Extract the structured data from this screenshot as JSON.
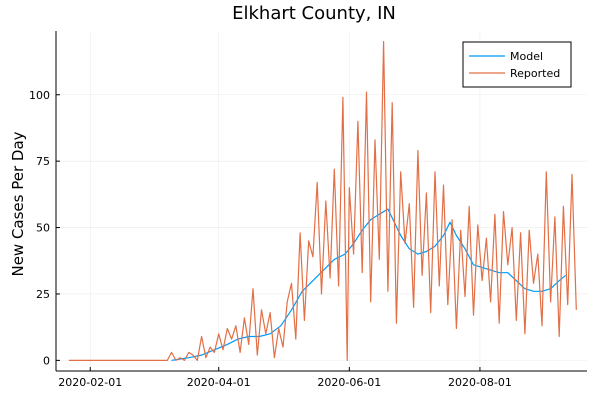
{
  "chart_data": {
    "type": "line",
    "title": "Elkhart County, IN",
    "xlabel": "",
    "ylabel": "New Cases Per Day",
    "x_axis_type": "date",
    "xlim": [
      "2020-01-16",
      "2020-09-20"
    ],
    "ylim": [
      -4,
      124
    ],
    "x_ticks": [
      "2020-02-01",
      "2020-04-01",
      "2020-06-01",
      "2020-08-01"
    ],
    "y_ticks": [
      0,
      25,
      50,
      75,
      100
    ],
    "grid": true,
    "legend_position": "top-right",
    "series": [
      {
        "name": "Model",
        "color": "#009AFA",
        "x": [
          "2020-03-10",
          "2020-03-18",
          "2020-03-24",
          "2020-03-30",
          "2020-04-05",
          "2020-04-10",
          "2020-04-15",
          "2020-04-20",
          "2020-04-25",
          "2020-04-30",
          "2020-05-05",
          "2020-05-10",
          "2020-05-15",
          "2020-05-20",
          "2020-05-25",
          "2020-05-30",
          "2020-06-03",
          "2020-06-07",
          "2020-06-11",
          "2020-06-15",
          "2020-06-19",
          "2020-06-22",
          "2020-06-25",
          "2020-06-29",
          "2020-07-03",
          "2020-07-07",
          "2020-07-11",
          "2020-07-15",
          "2020-07-18",
          "2020-07-21",
          "2020-07-25",
          "2020-07-29",
          "2020-08-02",
          "2020-08-06",
          "2020-08-10",
          "2020-08-14",
          "2020-08-18",
          "2020-08-22",
          "2020-08-26",
          "2020-08-30",
          "2020-09-03",
          "2020-09-07",
          "2020-09-10"
        ],
        "values": [
          0,
          1,
          2,
          4,
          6,
          8,
          9,
          9,
          10,
          13,
          19,
          26,
          30,
          34,
          38,
          40,
          44,
          49,
          53,
          55,
          57,
          52,
          47,
          42,
          40,
          41,
          43,
          47,
          52,
          47,
          42,
          36,
          35,
          34,
          33,
          33,
          30,
          27,
          26,
          26,
          27,
          30,
          32
        ]
      },
      {
        "name": "Reported",
        "color": "#E26F46",
        "x": [
          "2020-01-22",
          "2020-03-08",
          "2020-03-10",
          "2020-03-12",
          "2020-03-14",
          "2020-03-16",
          "2020-03-18",
          "2020-03-20",
          "2020-03-22",
          "2020-03-24",
          "2020-03-26",
          "2020-03-28",
          "2020-03-30",
          "2020-04-01",
          "2020-04-03",
          "2020-04-05",
          "2020-04-07",
          "2020-04-09",
          "2020-04-11",
          "2020-04-13",
          "2020-04-15",
          "2020-04-17",
          "2020-04-19",
          "2020-04-21",
          "2020-04-23",
          "2020-04-25",
          "2020-04-27",
          "2020-04-29",
          "2020-05-01",
          "2020-05-03",
          "2020-05-05",
          "2020-05-07",
          "2020-05-09",
          "2020-05-11",
          "2020-05-13",
          "2020-05-15",
          "2020-05-17",
          "2020-05-19",
          "2020-05-21",
          "2020-05-23",
          "2020-05-25",
          "2020-05-27",
          "2020-05-29",
          "2020-05-31",
          "2020-06-01",
          "2020-06-03",
          "2020-06-05",
          "2020-06-07",
          "2020-06-09",
          "2020-06-11",
          "2020-06-13",
          "2020-06-15",
          "2020-06-17",
          "2020-06-19",
          "2020-06-21",
          "2020-06-23",
          "2020-06-25",
          "2020-06-27",
          "2020-06-29",
          "2020-07-01",
          "2020-07-03",
          "2020-07-05",
          "2020-07-07",
          "2020-07-09",
          "2020-07-11",
          "2020-07-13",
          "2020-07-15",
          "2020-07-17",
          "2020-07-19",
          "2020-07-21",
          "2020-07-23",
          "2020-07-25",
          "2020-07-27",
          "2020-07-29",
          "2020-07-31",
          "2020-08-02",
          "2020-08-04",
          "2020-08-06",
          "2020-08-08",
          "2020-08-10",
          "2020-08-12",
          "2020-08-14",
          "2020-08-16",
          "2020-08-18",
          "2020-08-20",
          "2020-08-22",
          "2020-08-24",
          "2020-08-26",
          "2020-08-28",
          "2020-08-30",
          "2020-09-01",
          "2020-09-03",
          "2020-09-05",
          "2020-09-07",
          "2020-09-09",
          "2020-09-11",
          "2020-09-13",
          "2020-09-15"
        ],
        "values": [
          0,
          0,
          3,
          0,
          1,
          0,
          3,
          2,
          0,
          9,
          1,
          5,
          3,
          10,
          4,
          12,
          8,
          13,
          3,
          16,
          6,
          27,
          2,
          19,
          10,
          18,
          1,
          12,
          5,
          22,
          29,
          8,
          48,
          15,
          45,
          39,
          67,
          25,
          60,
          31,
          72,
          28,
          99,
          0,
          65,
          40,
          90,
          33,
          101,
          22,
          83,
          38,
          120,
          26,
          97,
          14,
          71,
          44,
          59,
          20,
          79,
          32,
          63,
          18,
          71,
          28,
          66,
          21,
          53,
          12,
          49,
          24,
          58,
          17,
          51,
          30,
          46,
          22,
          55,
          14,
          56,
          36,
          50,
          15,
          48,
          10,
          49,
          29,
          40,
          13,
          71,
          22,
          54,
          9,
          58,
          21,
          70,
          19
        ]
      }
    ]
  }
}
